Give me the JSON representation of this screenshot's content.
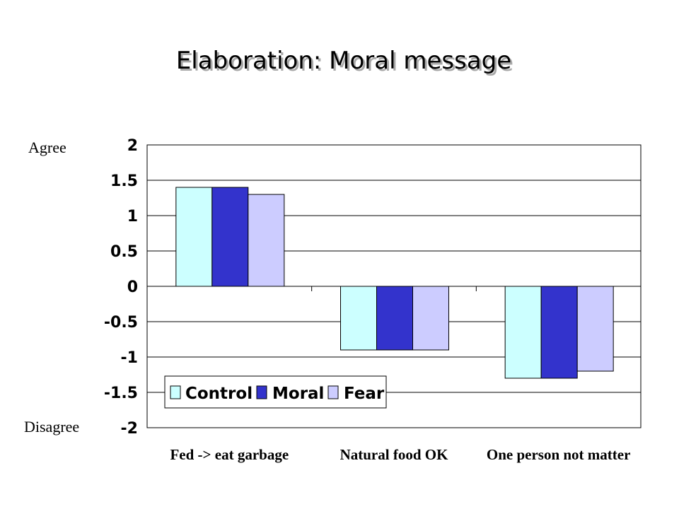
{
  "slide": {
    "title": "Elaboration: Moral message",
    "agree_label": "Agree",
    "disagree_label": "Disagree"
  },
  "chart_data": {
    "type": "bar",
    "categories": [
      "Fed -> eat garbage",
      "Natural food OK",
      "One person not matter"
    ],
    "series": [
      {
        "name": "Control",
        "color": "#ccffff",
        "values": [
          1.4,
          -0.9,
          -1.3
        ]
      },
      {
        "name": "Moral",
        "color": "#3333cc",
        "values": [
          1.4,
          -0.9,
          -1.3
        ]
      },
      {
        "name": "Fear",
        "color": "#ccccff",
        "values": [
          1.3,
          -0.9,
          -1.2
        ]
      }
    ],
    "ylim": [
      -2,
      2
    ],
    "yticks": [
      "2",
      "1.5",
      "1",
      "0.5",
      "0",
      "-0.5",
      "-1",
      "-1.5",
      "-2"
    ],
    "grid": true,
    "legend_position": "bottom-left"
  }
}
